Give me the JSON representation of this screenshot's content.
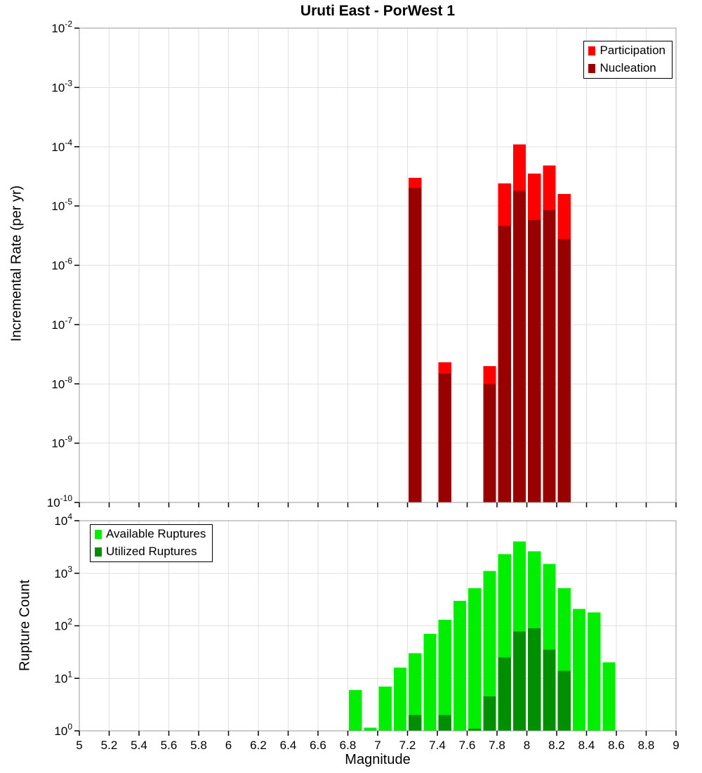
{
  "title": "Uruti East - PorWest 1",
  "xlabel": "Magnitude",
  "x_ticks": [
    5,
    5.2,
    5.4,
    5.6,
    5.8,
    6,
    6.2,
    6.4,
    6.6,
    6.8,
    7,
    7.2,
    7.4,
    7.6,
    7.8,
    8,
    8.2,
    8.4,
    8.6,
    8.8,
    9
  ],
  "colors": {
    "grid": "#e0e0e0",
    "plot_border": "#9a9a9a",
    "tick": "#000000"
  },
  "chart_data": [
    {
      "type": "bar",
      "name": "incremental-rate",
      "title": "Uruti East - PorWest 1",
      "xlabel": "Magnitude",
      "ylabel": "Incremental Rate (per yr)",
      "yscale": "log",
      "y_log_range": [
        -10,
        -2
      ],
      "ylim": [
        1e-10,
        0.01
      ],
      "xlim": [
        5,
        9
      ],
      "bar_width": 0.1,
      "grid": true,
      "legend_position": "top-right",
      "legend": [
        {
          "label": "Participation",
          "color": "#ff0000"
        },
        {
          "label": "Nucleation",
          "color": "#990000"
        }
      ],
      "series": [
        {
          "name": "Participation",
          "color": "#ff0000",
          "points": [
            {
              "x": 7.25,
              "y": 3e-05
            },
            {
              "x": 7.45,
              "y": 2.3e-08
            },
            {
              "x": 7.75,
              "y": 2e-08
            },
            {
              "x": 7.85,
              "y": 2.4e-05
            },
            {
              "x": 7.95,
              "y": 0.00011
            },
            {
              "x": 8.05,
              "y": 3.5e-05
            },
            {
              "x": 8.15,
              "y": 4.8e-05
            },
            {
              "x": 8.25,
              "y": 1.6e-05
            }
          ]
        },
        {
          "name": "Nucleation",
          "color": "#990000",
          "points": [
            {
              "x": 7.25,
              "y": 2e-05
            },
            {
              "x": 7.45,
              "y": 1.5e-08
            },
            {
              "x": 7.75,
              "y": 1e-08
            },
            {
              "x": 7.85,
              "y": 4.6e-06
            },
            {
              "x": 7.95,
              "y": 1.8e-05
            },
            {
              "x": 8.05,
              "y": 5.8e-06
            },
            {
              "x": 8.15,
              "y": 8.5e-06
            },
            {
              "x": 8.25,
              "y": 2.8e-06
            }
          ]
        }
      ]
    },
    {
      "type": "bar",
      "name": "rupture-count",
      "xlabel": "Magnitude",
      "ylabel": "Rupture Count",
      "yscale": "log",
      "y_log_range": [
        0,
        4
      ],
      "ylim": [
        1,
        10000
      ],
      "xlim": [
        5,
        9
      ],
      "bar_width": 0.1,
      "grid": true,
      "legend_position": "top-left",
      "legend": [
        {
          "label": "Available Ruptures",
          "color": "#00ee00"
        },
        {
          "label": "Utilized Ruptures",
          "color": "#008f00"
        }
      ],
      "series": [
        {
          "name": "Available Ruptures",
          "color": "#00ee00",
          "points": [
            {
              "x": 6.85,
              "y": 6
            },
            {
              "x": 6.95,
              "y": 1.15
            },
            {
              "x": 7.05,
              "y": 7
            },
            {
              "x": 7.15,
              "y": 16
            },
            {
              "x": 7.25,
              "y": 30
            },
            {
              "x": 7.35,
              "y": 70
            },
            {
              "x": 7.45,
              "y": 130
            },
            {
              "x": 7.55,
              "y": 300
            },
            {
              "x": 7.65,
              "y": 520
            },
            {
              "x": 7.75,
              "y": 1100
            },
            {
              "x": 7.85,
              "y": 2300
            },
            {
              "x": 7.95,
              "y": 4000
            },
            {
              "x": 8.05,
              "y": 2600
            },
            {
              "x": 8.15,
              "y": 1500
            },
            {
              "x": 8.25,
              "y": 520
            },
            {
              "x": 8.35,
              "y": 210
            },
            {
              "x": 8.45,
              "y": 180
            },
            {
              "x": 8.55,
              "y": 20
            }
          ]
        },
        {
          "name": "Utilized Ruptures",
          "color": "#008f00",
          "points": [
            {
              "x": 7.25,
              "y": 2
            },
            {
              "x": 7.45,
              "y": 2
            },
            {
              "x": 7.65,
              "y": 1.1
            },
            {
              "x": 7.75,
              "y": 4.5
            },
            {
              "x": 7.85,
              "y": 25
            },
            {
              "x": 7.95,
              "y": 78
            },
            {
              "x": 8.05,
              "y": 90
            },
            {
              "x": 8.15,
              "y": 35
            },
            {
              "x": 8.25,
              "y": 14
            }
          ]
        }
      ]
    }
  ]
}
